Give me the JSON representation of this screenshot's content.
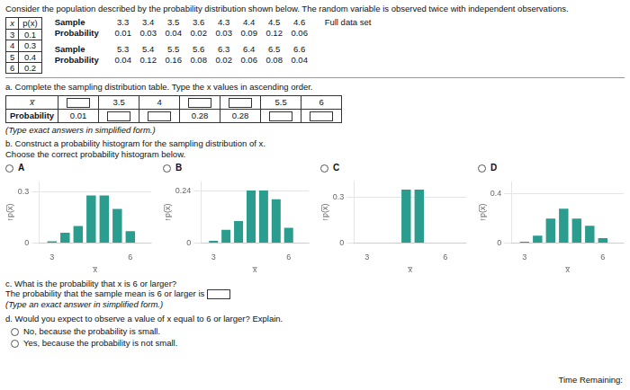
{
  "title": "Consider the population described by the probability distribution shown below. The random variable is observed twice with independent observations.",
  "annotations": {
    "px_table": [
      [
        "x",
        "p(x)"
      ],
      [
        "3",
        "0.1"
      ],
      [
        "4",
        "0.3"
      ],
      [
        "5",
        "0.4"
      ],
      [
        "6",
        "0.2"
      ]
    ],
    "sample_tables": [
      [
        [
          "Sample",
          "3.3",
          "3.4",
          "3.5",
          "3.6",
          "4.3",
          "4.4",
          "4.5",
          "4.6"
        ],
        [
          "Probability",
          "0.01",
          "0.03",
          "0.04",
          "0.02",
          "0.03",
          "0.09",
          "0.12",
          "0.06"
        ]
      ],
      [
        [
          "Sample",
          "5.3",
          "5.4",
          "5.5",
          "5.6",
          "6.3",
          "6.4",
          "6.5",
          "6.6"
        ],
        [
          "Probability",
          "0.04",
          "0.12",
          "0.16",
          "0.08",
          "0.02",
          "0.06",
          "0.08",
          "0.04"
        ]
      ]
    ],
    "full_data_set": "Full data set",
    "part_a": "a. Complete the sampling distribution table. Type the x values in ascending order.",
    "xbar_table": [
      [
        "x̅",
        null,
        "3.5",
        "4",
        null,
        null,
        "5.5",
        "6"
      ],
      [
        "Probability",
        "0.01",
        null,
        null,
        "0.28",
        "0.28",
        null,
        null
      ]
    ],
    "type_note": "(Type exact answers in simplified form.)",
    "part_b": [
      "b. Construct a probability histogram for the sampling distribution of x.",
      "Choose the correct probability histogram below."
    ],
    "part_c": [
      "c. What is the probability that x is 6 or larger?",
      "The probability that the sample mean is 6 or larger is"
    ],
    "part_c_note": "(Type an exact answer in simplified form.)",
    "part_d": "d. Would you expect to observe a value of x equal to 6 or larger? Explain.",
    "choices": [
      "No, because the probability is small.",
      "Yes, because the probability is not small."
    ],
    "time_text": "Time Remaining:"
  },
  "chart_data": [
    {
      "type": "bar",
      "title": "A",
      "x": [
        3,
        3.5,
        4,
        4.5,
        5,
        5.5,
        6
      ],
      "values": [
        0.01,
        0.06,
        0.1,
        0.28,
        0.28,
        0.2,
        0.07
      ],
      "color": "#2a9d8f",
      "xlim": [
        2.5,
        6.8
      ],
      "xticks": [
        3,
        6
      ],
      "ylim": [
        0,
        0.36
      ],
      "yticks": [
        0,
        0.3
      ],
      "x_label": "x̅",
      "y_label": "↑p(x̅)",
      "grid": true
    },
    {
      "type": "bar",
      "title": "B",
      "x": [
        3,
        3.5,
        4,
        4.5,
        5,
        5.5,
        6
      ],
      "values": [
        0.01,
        0.06,
        0.1,
        0.24,
        0.24,
        0.2,
        0.07
      ],
      "color": "#2a9d8f",
      "xlim": [
        2.5,
        6.8
      ],
      "xticks": [
        3,
        6
      ],
      "ylim": [
        0,
        0.28
      ],
      "yticks": [
        0,
        0.24
      ],
      "x_label": "x̅",
      "y_label": "↑p(x̅)",
      "grid": true
    },
    {
      "type": "bar",
      "title": "C",
      "x": [
        3,
        3.5,
        4,
        4.5,
        5,
        5.5,
        6
      ],
      "values": [
        0.0,
        0.0,
        0.0,
        0.35,
        0.35,
        0.0,
        0.0
      ],
      "color": "#2a9d8f",
      "xlim": [
        2.5,
        6.8
      ],
      "xticks": [
        3,
        6
      ],
      "ylim": [
        0,
        0.4
      ],
      "yticks": [
        0,
        0.3
      ],
      "x_label": "x̅",
      "y_label": "↑p(x̅)",
      "grid": true
    },
    {
      "type": "bar",
      "title": "D",
      "x": [
        3,
        3.5,
        4,
        4.5,
        5,
        5.5,
        6
      ],
      "values": [
        0.01,
        0.06,
        0.2,
        0.28,
        0.2,
        0.14,
        0.04
      ],
      "color": "#2a9d8f",
      "xlim": [
        2.5,
        6.8
      ],
      "xticks": [
        3,
        6
      ],
      "ylim": [
        0,
        0.5
      ],
      "yticks": [
        0,
        0.4
      ],
      "x_label": "x̅",
      "y_label": "↑p(x̅)",
      "grid": true
    }
  ]
}
